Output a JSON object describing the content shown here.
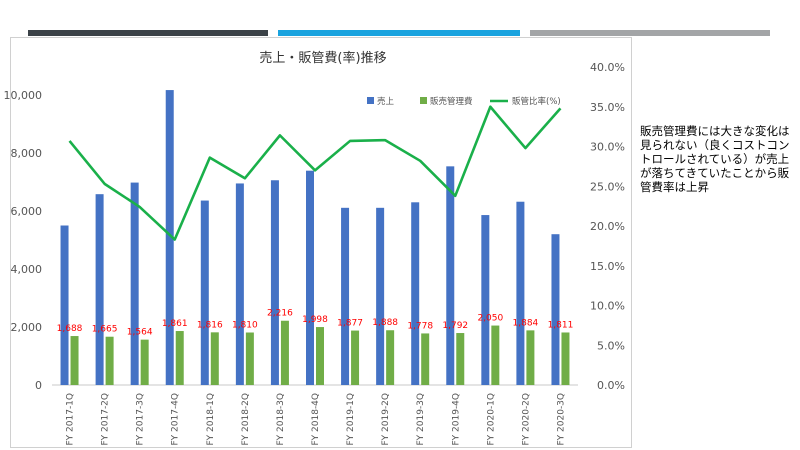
{
  "header_bars": [
    {
      "color": "#3b4248"
    },
    {
      "color": "#1aa3df"
    },
    {
      "color": "#a3a5a7"
    }
  ],
  "note_text": "販売管理費には大きな変化は見られない（良くコストコントロールされている）が売上が落ちてきていたことから販管費率は上昇",
  "chart_data": {
    "type": "bar",
    "title": "売上・販管費(率)推移",
    "categories": [
      "FY 2017-1Q",
      "FY 2017-2Q",
      "FY 2017-3Q",
      "FY 2017-4Q",
      "FY 2018-1Q",
      "FY 2018-2Q",
      "FY 2018-3Q",
      "FY 2018-4Q",
      "FY 2019-1Q",
      "FY 2019-2Q",
      "FY 2019-3Q",
      "FY 2019-4Q",
      "FY 2020-1Q",
      "FY 2020-2Q",
      "FY 2020-3Q"
    ],
    "series": [
      {
        "name": "売上",
        "type": "bar",
        "axis": "left",
        "color": "#4472c4",
        "values": [
          5500,
          6580,
          6980,
          10170,
          6360,
          6950,
          7060,
          7390,
          6110,
          6110,
          6300,
          7540,
          5860,
          6320,
          5200
        ]
      },
      {
        "name": "販売管理費",
        "type": "bar",
        "axis": "left",
        "color": "#70ad47",
        "values": [
          1688,
          1665,
          1564,
          1861,
          1816,
          1810,
          2216,
          1998,
          1877,
          1888,
          1778,
          1792,
          2050,
          1884,
          1811
        ]
      },
      {
        "name": "販管比率(%)",
        "type": "line",
        "axis": "right",
        "color": "#1ab04a",
        "values": [
          30.7,
          25.3,
          22.4,
          18.3,
          28.6,
          26.0,
          31.4,
          27.0,
          30.7,
          30.8,
          28.2,
          23.8,
          35.0,
          29.8,
          34.8
        ]
      }
    ],
    "data_labels": [
      "1,688",
      "1,665",
      "1,564",
      "1,861",
      "1,816",
      "1,810",
      "2,216",
      "1,998",
      "1,877",
      "1,888",
      "1,778",
      "1,792",
      "2,050",
      "1,884",
      "1,811"
    ],
    "data_label_color": "#ff0000",
    "left_ticks": [
      "0",
      "2,000",
      "4,000",
      "6,000",
      "8,000",
      "10,000"
    ],
    "right_ticks": [
      "0.0%",
      "5.0%",
      "10.0%",
      "15.0%",
      "20.0%",
      "25.0%",
      "30.0%",
      "35.0%",
      "40.0%"
    ],
    "ylim_left": [
      0,
      11000
    ],
    "ylim_right": [
      0,
      40
    ],
    "legend_position": "top-right",
    "grid": false
  }
}
